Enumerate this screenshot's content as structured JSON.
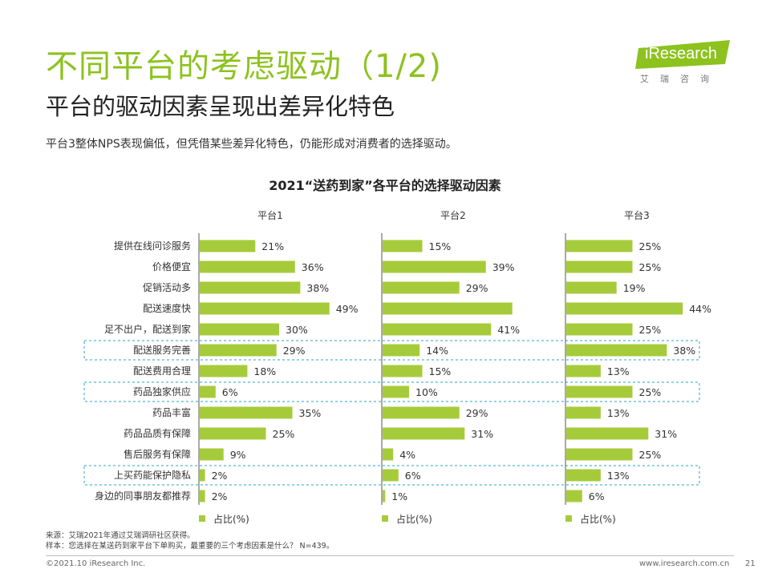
{
  "header": {
    "title": "不同平台的考虑驱动（1/2)",
    "subtitle": "平台的驱动因素呈现出差异化特色",
    "description": "平台3整体NPS表现偏低，但凭借某些差异化特色，仍能形成对消费者的选择驱动。"
  },
  "logo": {
    "name": "iResearch",
    "sub": "艾瑞咨询"
  },
  "colors": {
    "accent": "#8dc21f",
    "bar": "#a6cb3a",
    "highlight_border": "#29a6c4",
    "logo_bg": "#8dc21f"
  },
  "chart_data": {
    "type": "bar",
    "orientation": "horizontal",
    "title": "2021“送药到家”各平台的选择驱动因素",
    "categories": [
      "提供在线问诊服务",
      "价格便宜",
      "促销活动多",
      "配送速度快",
      "足不出户，配送到家",
      "配送服务完善",
      "配送费用合理",
      "药品独家供应",
      "药品丰富",
      "药品品质有保障",
      "售后服务有保障",
      "上买药能保护隐私",
      "身边的同事朋友都推荐"
    ],
    "series": [
      {
        "name": "平台1",
        "values": [
          21,
          36,
          38,
          49,
          30,
          29,
          18,
          6,
          35,
          25,
          9,
          2,
          2
        ],
        "labels": [
          "21%",
          "36%",
          "38%",
          "49%",
          "30%",
          "29%",
          "18%",
          "6%",
          "35%",
          "25%",
          "9%",
          "2%",
          "2%"
        ]
      },
      {
        "name": "平台2",
        "values": [
          15,
          39,
          29,
          49,
          41,
          14,
          15,
          10,
          29,
          31,
          4,
          6,
          1
        ],
        "labels": [
          "15%",
          "39%",
          "29%",
          "",
          "41%",
          "14%",
          "15%",
          "10%",
          "29%",
          "31%",
          "4%",
          "6%",
          "1%"
        ]
      },
      {
        "name": "平台3",
        "values": [
          25,
          25,
          19,
          44,
          25,
          38,
          13,
          25,
          13,
          31,
          25,
          13,
          6
        ],
        "labels": [
          "25%",
          "25%",
          "19%",
          "44%",
          "25%",
          "38%",
          "13%",
          "25%",
          "13%",
          "31%",
          "25%",
          "13%",
          "6%"
        ]
      }
    ],
    "highlighted_categories": [
      "配送服务完善",
      "药品独家供应",
      "上买药能保护隐私"
    ],
    "legend": "占比(%)",
    "xlim": [
      0,
      60
    ]
  },
  "footer": {
    "source_line1": "来源：艾瑞2021年通过艾瑞调研社区获得。",
    "source_line2": "样本：您选择在某送药到家平台下单购买，最重要的三个考虑因素是什么？ N=439。",
    "copyright": "©2021.10 iResearch Inc.",
    "website": "www.iresearch.com.cn",
    "page": "21"
  }
}
